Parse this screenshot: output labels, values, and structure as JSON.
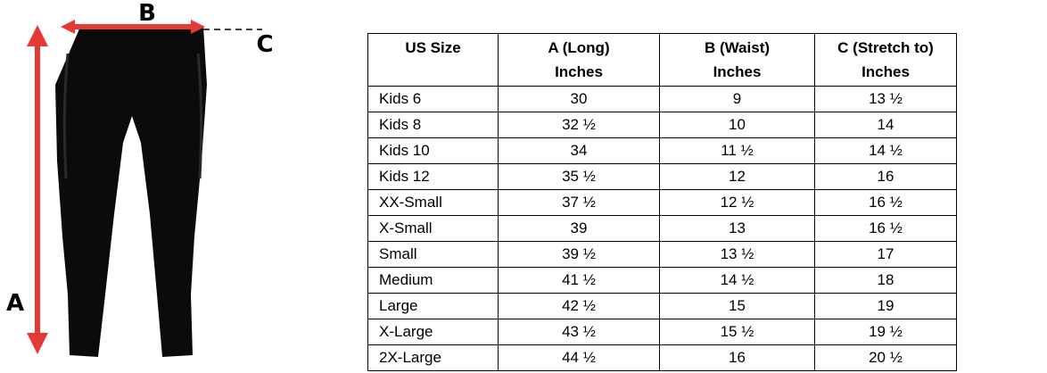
{
  "diagram": {
    "labels": {
      "a": "A",
      "b": "B",
      "c": "C"
    }
  },
  "table": {
    "header": [
      [
        "US Size"
      ],
      [
        "A (Long)",
        "Inches"
      ],
      [
        "B (Waist)",
        "Inches"
      ],
      [
        "C (Stretch to)",
        "Inches"
      ]
    ],
    "rows": [
      [
        "Kids 6",
        "30",
        "9",
        "13 ½"
      ],
      [
        "Kids 8",
        "32 ½",
        "10",
        "14"
      ],
      [
        "Kids 10",
        "34",
        "11 ½",
        "14 ½"
      ],
      [
        "Kids 12",
        "35 ½",
        "12",
        "16"
      ],
      [
        "XX-Small",
        "37 ½",
        "12 ½",
        "16 ½"
      ],
      [
        "X-Small",
        "39",
        "13",
        "16 ½"
      ],
      [
        "Small",
        "39 ½",
        "13 ½",
        "17"
      ],
      [
        "Medium",
        "41 ½",
        "14 ½",
        "18"
      ],
      [
        "Large",
        "42 ½",
        "15",
        "19"
      ],
      [
        "X-Large",
        "43 ½",
        "15 ½",
        "19 ½"
      ],
      [
        "2X-Large",
        "44 ½",
        "16",
        "20 ½"
      ]
    ]
  }
}
